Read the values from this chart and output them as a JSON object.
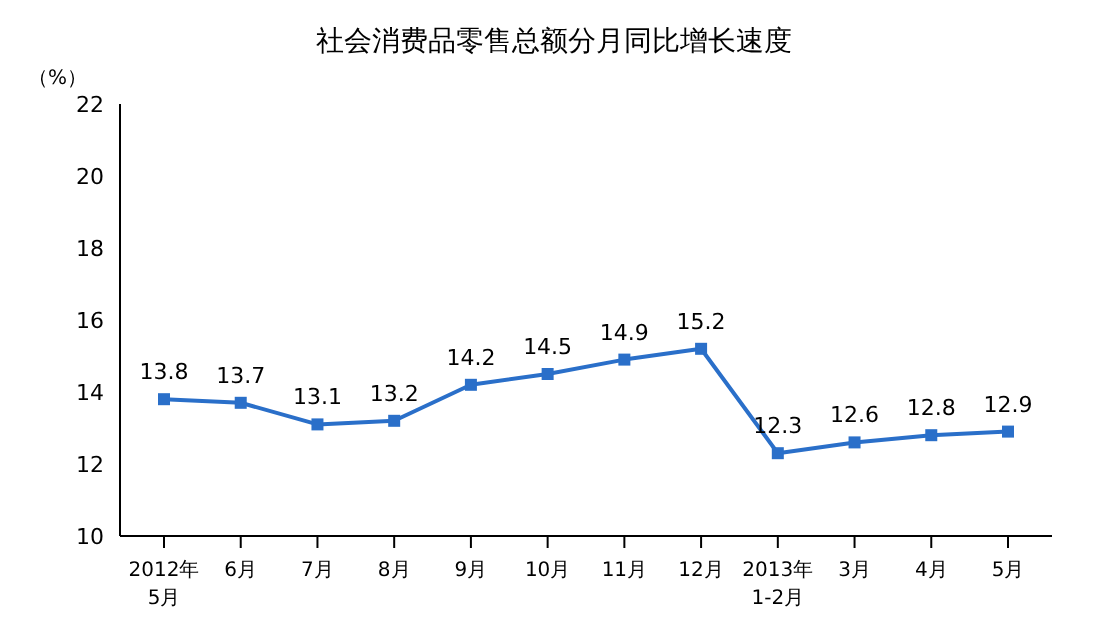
{
  "chart_data": {
    "type": "line",
    "title": "社会消费品零售总额分月同比增长速度",
    "ylabel": "（%）",
    "categories": [
      "2012年\n5月",
      "6月",
      "7月",
      "8月",
      "9月",
      "10月",
      "11月",
      "12月",
      "2013年\n1-2月",
      "3月",
      "4月",
      "5月"
    ],
    "series": [
      {
        "color": "#2a6fc9",
        "values": [
          13.8,
          13.7,
          13.1,
          13.2,
          14.2,
          14.5,
          14.9,
          15.2,
          12.3,
          12.6,
          12.8,
          12.9
        ]
      }
    ],
    "ylim": [
      10,
      22
    ],
    "yticks": [
      10,
      12,
      14,
      16,
      18,
      20,
      22
    ],
    "grid": false,
    "legend": false,
    "marker": "square",
    "line_style": "solid",
    "data_labels": true
  }
}
